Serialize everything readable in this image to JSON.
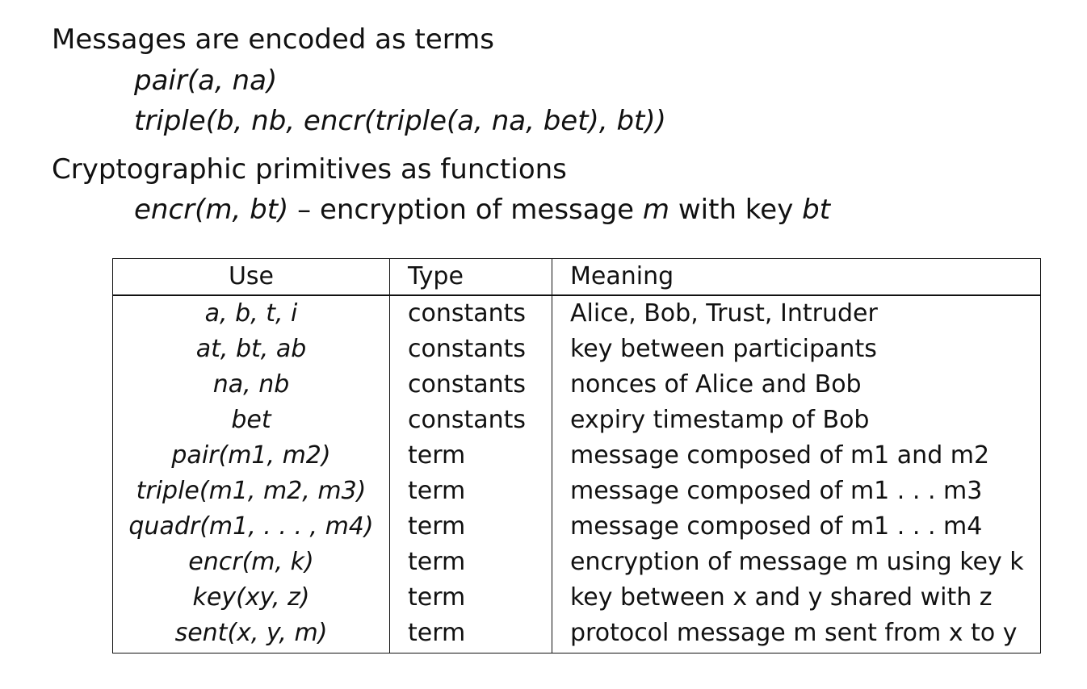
{
  "intro": {
    "heading1": "Messages are encoded as terms",
    "example1": "pair(a, na)",
    "example2": "triple(b, nb, encr(triple(a, na, bet), bt))",
    "heading2": "Cryptographic primitives as functions",
    "primitive": {
      "expr": "encr(m, bt)",
      "text_before": " – encryption of message ",
      "var1": "m",
      "text_middle": " with key ",
      "var2": "bt"
    }
  },
  "table": {
    "headers": {
      "use": "Use",
      "type": "Type",
      "meaning": "Meaning"
    },
    "rows": [
      {
        "use": "a, b, t, i",
        "type": "constants",
        "meaning": "Alice, Bob, Trust, Intruder"
      },
      {
        "use": "at, bt, ab",
        "type": "constants",
        "meaning": "key between participants"
      },
      {
        "use": "na, nb",
        "type": "constants",
        "meaning": "nonces of Alice and Bob"
      },
      {
        "use": "bet",
        "type": "constants",
        "meaning": "expiry timestamp of Bob"
      },
      {
        "use": "pair(m1, m2)",
        "type": "term",
        "meaning": "message composed of m1 and m2"
      },
      {
        "use": "triple(m1, m2, m3)",
        "type": "term",
        "meaning": "message composed of m1 . . . m3"
      },
      {
        "use": "quadr(m1, . . . , m4)",
        "type": "term",
        "meaning": "message composed of m1 . . . m4"
      },
      {
        "use": "encr(m, k)",
        "type": "term",
        "meaning": "encryption of message m using key k"
      },
      {
        "use": "key(xy, z)",
        "type": "term",
        "meaning": "key between x and y shared with z"
      },
      {
        "use": "sent(x, y, m)",
        "type": "term",
        "meaning": "protocol message m sent from x to y"
      }
    ]
  }
}
